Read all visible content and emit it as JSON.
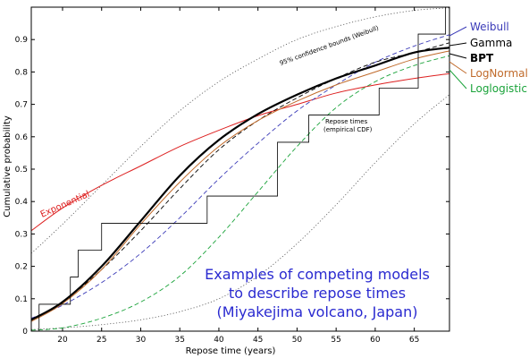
{
  "chart_data": {
    "type": "line",
    "xlabel": "Repose time (years)",
    "ylabel": "Cumulative probability",
    "xlim": [
      16,
      69.5
    ],
    "ylim": [
      0,
      1
    ],
    "x_ticks": [
      20,
      25,
      30,
      35,
      40,
      45,
      50,
      55,
      60,
      65
    ],
    "y_ticks": [
      0,
      0.1,
      0.2,
      0.3,
      0.4,
      0.5,
      0.6,
      0.7,
      0.8,
      0.9
    ],
    "y_tick_labels": [
      "0",
      "0.1",
      "0.2",
      "0.3",
      "0.4",
      "0.5",
      "0.6",
      "0.7",
      "0.8",
      "0.9"
    ],
    "caption_lines": [
      "Examples of competing models",
      "to describe repose times",
      "(Miyakejima volcano, Japan)"
    ],
    "annotations": {
      "confidence": "95% confidence bounds (Weibull)",
      "empirical_line1": "Repose times",
      "empirical_line2": "(empirical CDF)",
      "exponential": "Exponential"
    },
    "series": [
      {
        "name": "Weibull",
        "color": "#3b3bb8",
        "style": "dashed",
        "width": 0.9,
        "x": [
          16,
          20,
          25,
          30,
          35,
          40,
          45,
          50,
          55,
          60,
          65,
          69.5
        ],
        "y": [
          0.04,
          0.08,
          0.15,
          0.24,
          0.35,
          0.47,
          0.58,
          0.68,
          0.76,
          0.83,
          0.88,
          0.915
        ]
      },
      {
        "name": "Gamma",
        "color": "#000000",
        "style": "dashed",
        "width": 0.9,
        "x": [
          16,
          20,
          25,
          30,
          35,
          40,
          45,
          50,
          55,
          60,
          65,
          69.5
        ],
        "y": [
          0.035,
          0.09,
          0.19,
          0.31,
          0.44,
          0.56,
          0.65,
          0.72,
          0.78,
          0.83,
          0.86,
          0.89
        ]
      },
      {
        "name": "BPT",
        "color": "#000000",
        "style": "solid",
        "width": 2.2,
        "x": [
          16,
          20,
          25,
          30,
          35,
          40,
          45,
          50,
          55,
          60,
          65,
          69.5
        ],
        "y": [
          0.035,
          0.09,
          0.2,
          0.34,
          0.48,
          0.59,
          0.67,
          0.73,
          0.78,
          0.82,
          0.86,
          0.875
        ]
      },
      {
        "name": "LogNormal",
        "color": "#c06a2a",
        "style": "solid",
        "width": 1.0,
        "x": [
          16,
          20,
          25,
          30,
          35,
          40,
          45,
          50,
          55,
          60,
          65,
          69.5
        ],
        "y": [
          0.03,
          0.085,
          0.19,
          0.33,
          0.46,
          0.57,
          0.65,
          0.71,
          0.76,
          0.8,
          0.84,
          0.865
        ]
      },
      {
        "name": "Loglogistic",
        "color": "#1aa33a",
        "style": "dashed",
        "width": 0.9,
        "x": [
          16,
          20,
          25,
          30,
          35,
          40,
          45,
          50,
          55,
          60,
          65,
          69.5
        ],
        "y": [
          0.003,
          0.01,
          0.04,
          0.09,
          0.17,
          0.29,
          0.43,
          0.57,
          0.69,
          0.77,
          0.82,
          0.85
        ]
      },
      {
        "name": "Exponential",
        "color": "#dd2020",
        "style": "solid",
        "width": 1.0,
        "x": [
          16,
          20,
          25,
          30,
          35,
          40,
          45,
          50,
          55,
          60,
          65,
          69.5
        ],
        "y": [
          0.31,
          0.38,
          0.45,
          0.51,
          0.57,
          0.62,
          0.665,
          0.7,
          0.735,
          0.76,
          0.78,
          0.795
        ]
      },
      {
        "name": "",
        "color": "#555555",
        "style": "dotted",
        "width": 0.8,
        "x": [
          16,
          20,
          25,
          30,
          35,
          40,
          45,
          50,
          55,
          60,
          65,
          69.5
        ],
        "y": [
          0.24,
          0.33,
          0.45,
          0.57,
          0.68,
          0.77,
          0.84,
          0.9,
          0.94,
          0.97,
          0.99,
          0.998
        ]
      },
      {
        "name": "",
        "color": "#555555",
        "style": "dotted",
        "width": 0.8,
        "x": [
          16,
          20,
          25,
          30,
          35,
          40,
          45,
          50,
          55,
          60,
          65,
          69.5
        ],
        "y": [
          0.005,
          0.01,
          0.02,
          0.035,
          0.06,
          0.1,
          0.17,
          0.27,
          0.39,
          0.52,
          0.64,
          0.73
        ]
      }
    ],
    "ecdf": {
      "name": "Repose times",
      "color": "#000000",
      "x": [
        16,
        17,
        21,
        22,
        25,
        32,
        38.5,
        47.5,
        51.5,
        60.5,
        65.5,
        69
      ],
      "y": [
        0.0,
        0.083,
        0.167,
        0.25,
        0.333,
        0.333,
        0.417,
        0.583,
        0.667,
        0.75,
        0.917,
        1.0
      ]
    }
  }
}
